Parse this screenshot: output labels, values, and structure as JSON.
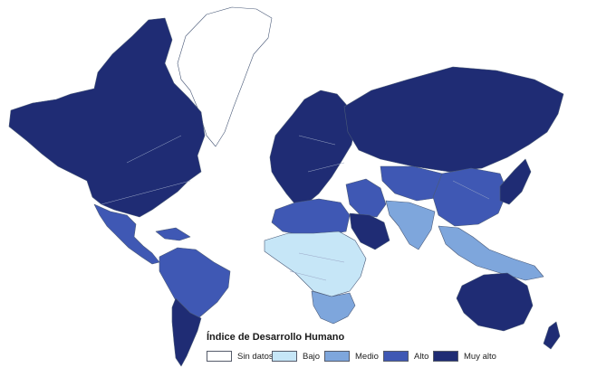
{
  "legend": {
    "title": "Índice de Desarrollo Humano",
    "items": [
      {
        "label": "Sin datos",
        "color": "#ffffff"
      },
      {
        "label": "Bajo",
        "color": "#c6e6f7"
      },
      {
        "label": "Medio",
        "color": "#7ea6dc"
      },
      {
        "label": "Alto",
        "color": "#3f58b4"
      },
      {
        "label": "Muy alto",
        "color": "#1f2c74"
      }
    ]
  },
  "regions": [
    {
      "name": "Greenland",
      "category": "Sin datos"
    },
    {
      "name": "North America",
      "category": "Muy alto"
    },
    {
      "name": "Mexico and Central America",
      "category": "Alto"
    },
    {
      "name": "Caribbean",
      "category": "Alto"
    },
    {
      "name": "South America",
      "category": "Alto"
    },
    {
      "name": "Southern Cone",
      "category": "Muy alto"
    },
    {
      "name": "Europe",
      "category": "Muy alto"
    },
    {
      "name": "Russia",
      "category": "Muy alto"
    },
    {
      "name": "North Africa",
      "category": "Alto"
    },
    {
      "name": "Sub-Saharan Africa",
      "category": "Bajo"
    },
    {
      "name": "Southern Africa",
      "category": "Medio"
    },
    {
      "name": "Middle East",
      "category": "Alto"
    },
    {
      "name": "Arabian Peninsula",
      "category": "Muy alto"
    },
    {
      "name": "Central Asia",
      "category": "Alto"
    },
    {
      "name": "South Asia",
      "category": "Medio"
    },
    {
      "name": "China",
      "category": "Alto"
    },
    {
      "name": "Southeast Asia",
      "category": "Medio"
    },
    {
      "name": "Japan and Korea",
      "category": "Muy alto"
    },
    {
      "name": "Australia and New Zealand",
      "category": "Muy alto"
    }
  ]
}
